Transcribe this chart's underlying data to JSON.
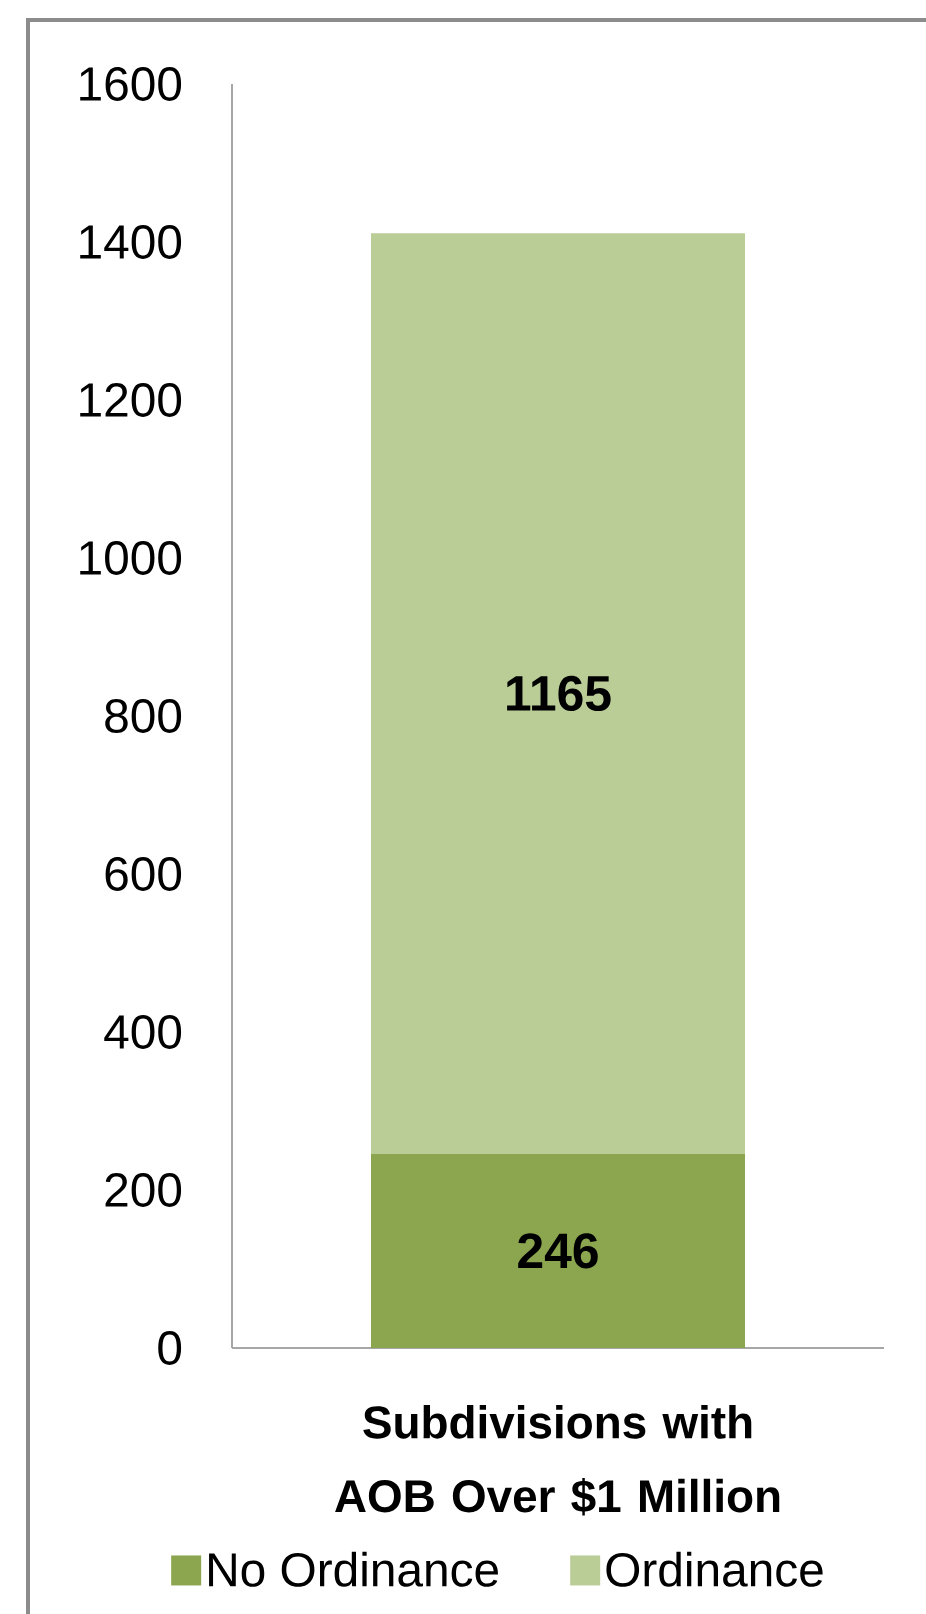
{
  "chart_data": {
    "type": "bar",
    "stacked": true,
    "categories": [
      "Subdivisions with AOB Over $1 Million"
    ],
    "series": [
      {
        "name": "No Ordinance",
        "color": "#8ba64e",
        "values": [
          246
        ]
      },
      {
        "name": "Ordinance",
        "color": "#bacd97",
        "values": [
          1165
        ]
      }
    ],
    "ylim": [
      0,
      1600
    ],
    "yticks": [
      0,
      200,
      400,
      600,
      800,
      1000,
      1200,
      1400,
      1600
    ],
    "data_labels": true,
    "legend": "bottom"
  }
}
